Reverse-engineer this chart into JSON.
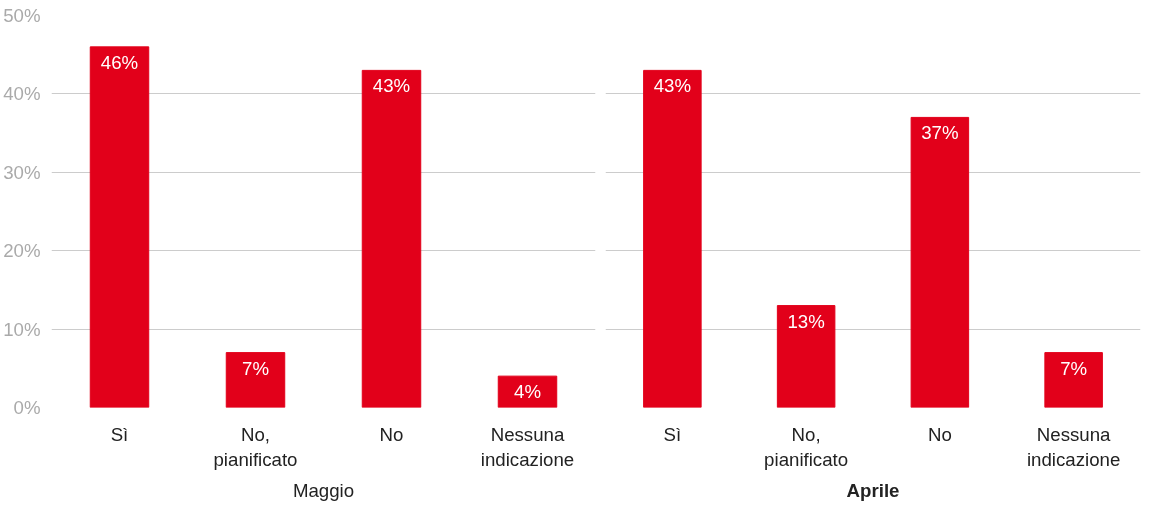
{
  "chart_data": [
    {
      "type": "bar",
      "title": "Maggio",
      "categories": [
        "Sì",
        "No, pianificato",
        "No",
        "Nessuna indicazione"
      ],
      "values": [
        46,
        7,
        43,
        4
      ],
      "value_labels": [
        "46%",
        "7%",
        "43%",
        "4%"
      ],
      "color": "#e2001a",
      "ylim": [
        0,
        50
      ],
      "yticks": [
        {
          "value": 0,
          "label": "0%"
        },
        {
          "value": 10,
          "label": "10%"
        },
        {
          "value": 20,
          "label": "20%"
        },
        {
          "value": 30,
          "label": "30%"
        },
        {
          "value": 40,
          "label": "40%"
        },
        {
          "value": 50,
          "label": "50%"
        }
      ],
      "grid": "y"
    },
    {
      "type": "bar",
      "title": "Aprile",
      "categories": [
        "Sì",
        "No, pianificato",
        "No",
        "Nessuna indicazione"
      ],
      "values": [
        43,
        13,
        37,
        7
      ],
      "value_labels": [
        "43%",
        "13%",
        "37%",
        "7%"
      ],
      "color": "#e2001a",
      "ylim": [
        0,
        50
      ],
      "yticks": [
        0,
        10,
        20,
        30,
        40,
        50
      ],
      "grid": "y",
      "tick_labels": "x"
    }
  ]
}
